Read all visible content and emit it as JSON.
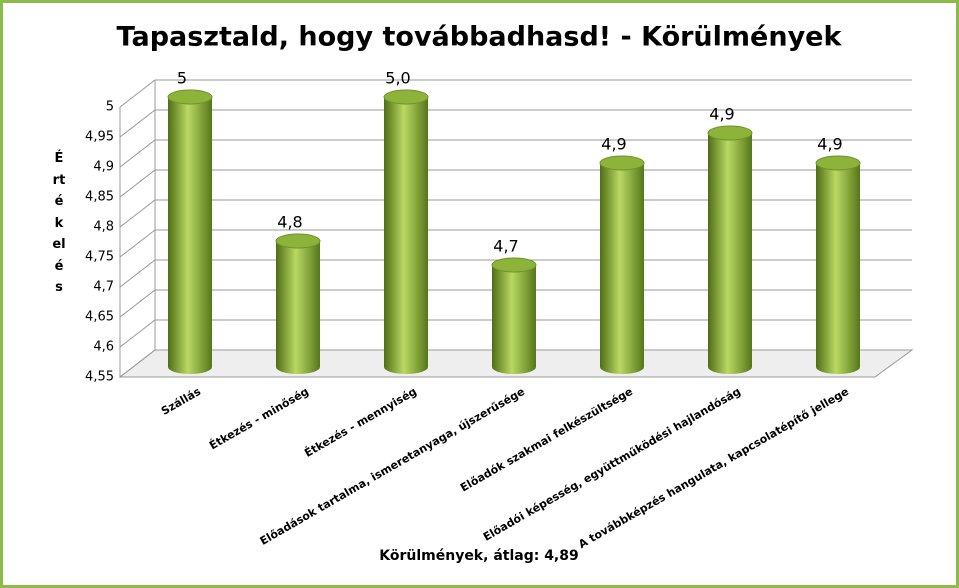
{
  "chart_data": {
    "type": "bar",
    "title": "Tapasztald, hogy továbbadhasd! - Körülmények",
    "y_label": "Értékelés",
    "x_label": "Körülmények, átlag: 4,89",
    "categories": [
      "Szállás",
      "Étkezés - minőség",
      "Étkezés - mennyiség",
      "Előadások tartalma, ismeretanyaga, újszerűsége",
      "Előadók szakmai felkészültsége",
      "Előadói képesség, együttműködési hajlandóság",
      "A továbbképzés hangulata, kapcsolatépítő jellege"
    ],
    "values": [
      5,
      4.76,
      5,
      4.72,
      4.89,
      4.94,
      4.89
    ],
    "value_labels": [
      "5",
      "4,8",
      "5,0",
      "4,7",
      "4,9",
      "4,9",
      "4,9"
    ],
    "color": "#8db33a",
    "ylim": [
      4.55,
      5
    ],
    "yticks": [
      {
        "value": 4.55,
        "label": "4,55"
      },
      {
        "value": 4.6,
        "label": "4,6"
      },
      {
        "value": 4.65,
        "label": "4,65"
      },
      {
        "value": 4.7,
        "label": "4,7"
      },
      {
        "value": 4.75,
        "label": "4,75"
      },
      {
        "value": 4.8,
        "label": "4,8"
      },
      {
        "value": 4.85,
        "label": "4,85"
      },
      {
        "value": 4.9,
        "label": "4,9"
      },
      {
        "value": 4.95,
        "label": "4,95"
      },
      5
    ],
    "grid": true
  }
}
